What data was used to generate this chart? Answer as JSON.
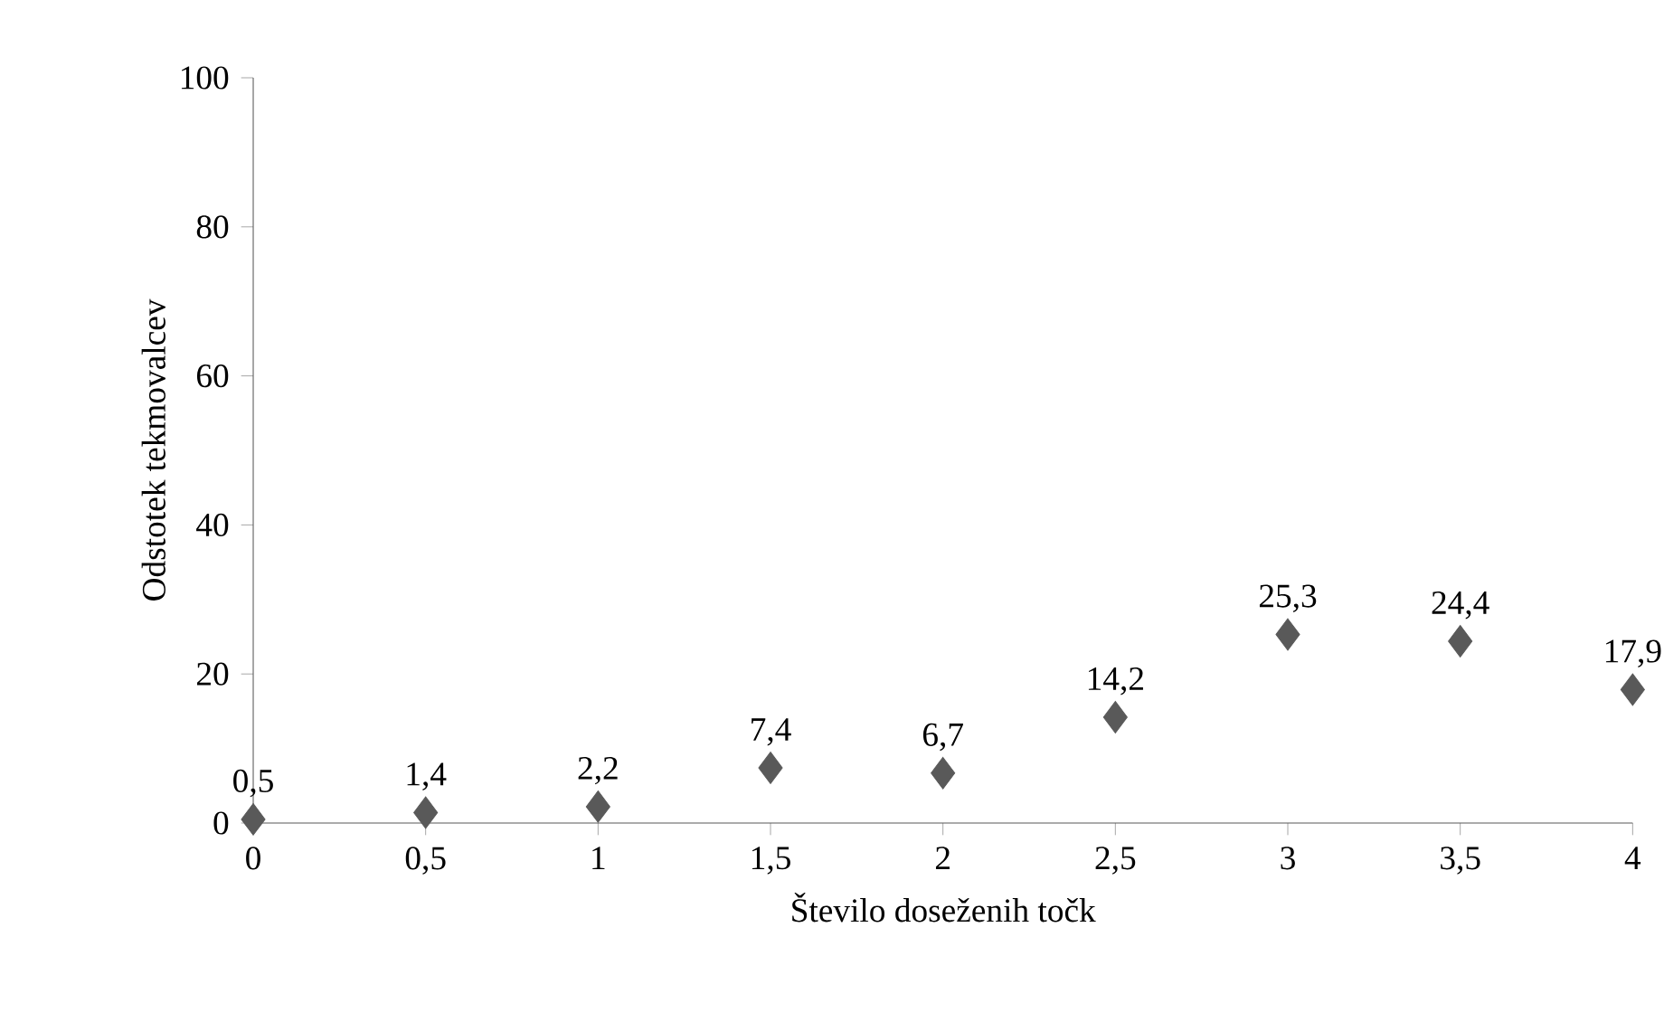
{
  "chart_data": {
    "type": "scatter",
    "xlabel": "Število doseženih točk",
    "ylabel": "Odstotek tekmovalcev",
    "x": [
      0,
      0.5,
      1,
      1.5,
      2,
      2.5,
      3,
      3.5,
      4
    ],
    "values": [
      0.5,
      1.4,
      2.2,
      7.4,
      6.7,
      14.2,
      25.3,
      24.4,
      17.9
    ],
    "value_labels": [
      "0,5",
      "1,4",
      "2,2",
      "7,4",
      "6,7",
      "14,2",
      "25,3",
      "24,4",
      "17,9"
    ],
    "color": "#595959",
    "marker": "diamond",
    "xlim": [
      0,
      4
    ],
    "ylim": [
      0,
      100
    ],
    "xticks": [
      0,
      {
        "value": 0.5,
        "label": "0,5"
      },
      1,
      {
        "value": 1.5,
        "label": "1,5"
      },
      2,
      {
        "value": 2.5,
        "label": "2,5"
      },
      3,
      {
        "value": 3.5,
        "label": "3,5"
      },
      4
    ],
    "yticks": [
      0,
      20,
      40,
      60,
      80,
      100
    ]
  }
}
